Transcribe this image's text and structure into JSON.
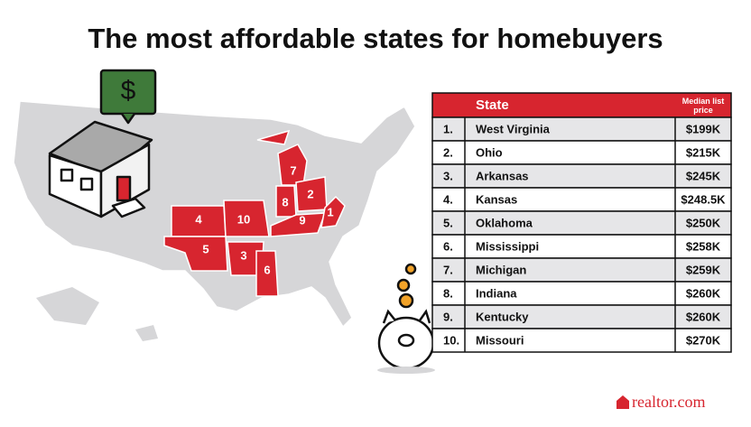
{
  "title": "The most affordable states for homebuyers",
  "icon_text": "$",
  "map": {
    "labels": [
      "1",
      "2",
      "3",
      "4",
      "5",
      "6",
      "7",
      "8",
      "9",
      "10"
    ]
  },
  "table": {
    "header": [
      "State",
      "Median list price"
    ],
    "rows": [
      [
        "1.",
        "West Virginia",
        "$199K"
      ],
      [
        "2.",
        "Ohio",
        "$215K"
      ],
      [
        "3.",
        "Arkansas",
        "$245K"
      ],
      [
        "4.",
        "Kansas",
        "$248.5K"
      ],
      [
        "5.",
        "Oklahoma",
        "$250K"
      ],
      [
        "6.",
        "Mississippi",
        "$258K"
      ],
      [
        "7.",
        "Michigan",
        "$259K"
      ],
      [
        "8.",
        "Indiana",
        "$260K"
      ],
      [
        "9.",
        "Kentucky",
        "$260K"
      ],
      [
        "10.",
        "Missouri",
        "$270K"
      ]
    ]
  },
  "brand": "realtor.com"
}
